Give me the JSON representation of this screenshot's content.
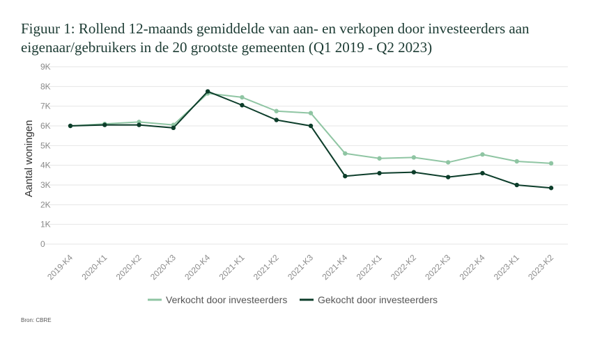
{
  "title": "Figuur 1: Rollend 12-maands gemiddelde van aan- en verkopen door investeerders aan eigenaar/gebruikers in de 20 grootste gemeenten (Q1 2019 - Q2 2023)",
  "source": "Bron: CBRE",
  "chart_data": {
    "type": "line",
    "ylabel": "Aantal woningen",
    "xlabel": "",
    "ylim": [
      0,
      9000
    ],
    "yticks": [
      0,
      1000,
      2000,
      3000,
      4000,
      5000,
      6000,
      7000,
      8000,
      9000
    ],
    "ytick_labels": [
      "0",
      "1K",
      "2K",
      "3K",
      "4K",
      "5K",
      "6K",
      "7K",
      "8K",
      "9K"
    ],
    "grid": true,
    "legend_position": "bottom",
    "categories": [
      "2019-K4",
      "2020-K1",
      "2020-K2",
      "2020-K3",
      "2020-K4",
      "2021-K1",
      "2021-K2",
      "2021-K3",
      "2021-K4",
      "2022-K1",
      "2022-K2",
      "2022-K3",
      "2022-K4",
      "2023-K1",
      "2023-K2"
    ],
    "series": [
      {
        "name": "Verkocht door investeerders",
        "color": "#8fc5a3",
        "values": [
          6000,
          6100,
          6200,
          6050,
          7650,
          7450,
          6750,
          6650,
          4600,
          4350,
          4400,
          4150,
          4550,
          4200,
          4100
        ]
      },
      {
        "name": "Gekocht door investeerders",
        "color": "#0c3d2a",
        "values": [
          6000,
          6050,
          6050,
          5900,
          7750,
          7050,
          6300,
          6000,
          3450,
          3600,
          3650,
          3400,
          3600,
          3000,
          2850
        ]
      }
    ]
  }
}
